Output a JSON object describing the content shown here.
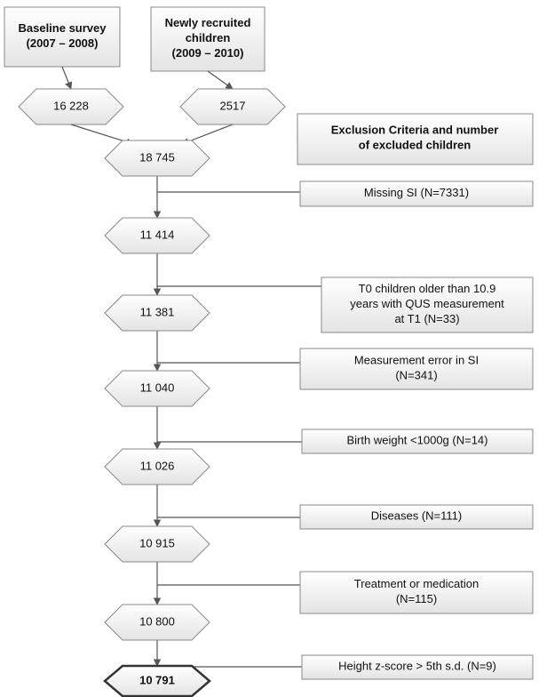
{
  "sources": [
    {
      "label": [
        "Baseline survey",
        "(2007 – 2008)"
      ],
      "count": "16 228"
    },
    {
      "label": [
        "Newly recruited",
        "children",
        "(2009 – 2010)"
      ],
      "count": "2517"
    }
  ],
  "exclusion_header": [
    "Exclusion Criteria and number",
    "of excluded children"
  ],
  "nodes": [
    "18 745",
    "11 414",
    "11 381",
    "11 040",
    "11 026",
    "10 915",
    "10 800",
    "10 791"
  ],
  "exclusions": [
    [
      "Missing SI (N=7331)"
    ],
    [
      "T0 children older than 10.9",
      "years with QUS measurement",
      "at T1 (N=33)"
    ],
    [
      "Measurement error in SI",
      "(N=341)"
    ],
    [
      "Birth weight <1000g (N=14)"
    ],
    [
      "Diseases (N=111)"
    ],
    [
      "Treatment or medication",
      "(N=115)"
    ],
    [
      "Height z-score > 5th s.d. (N=9)"
    ]
  ]
}
